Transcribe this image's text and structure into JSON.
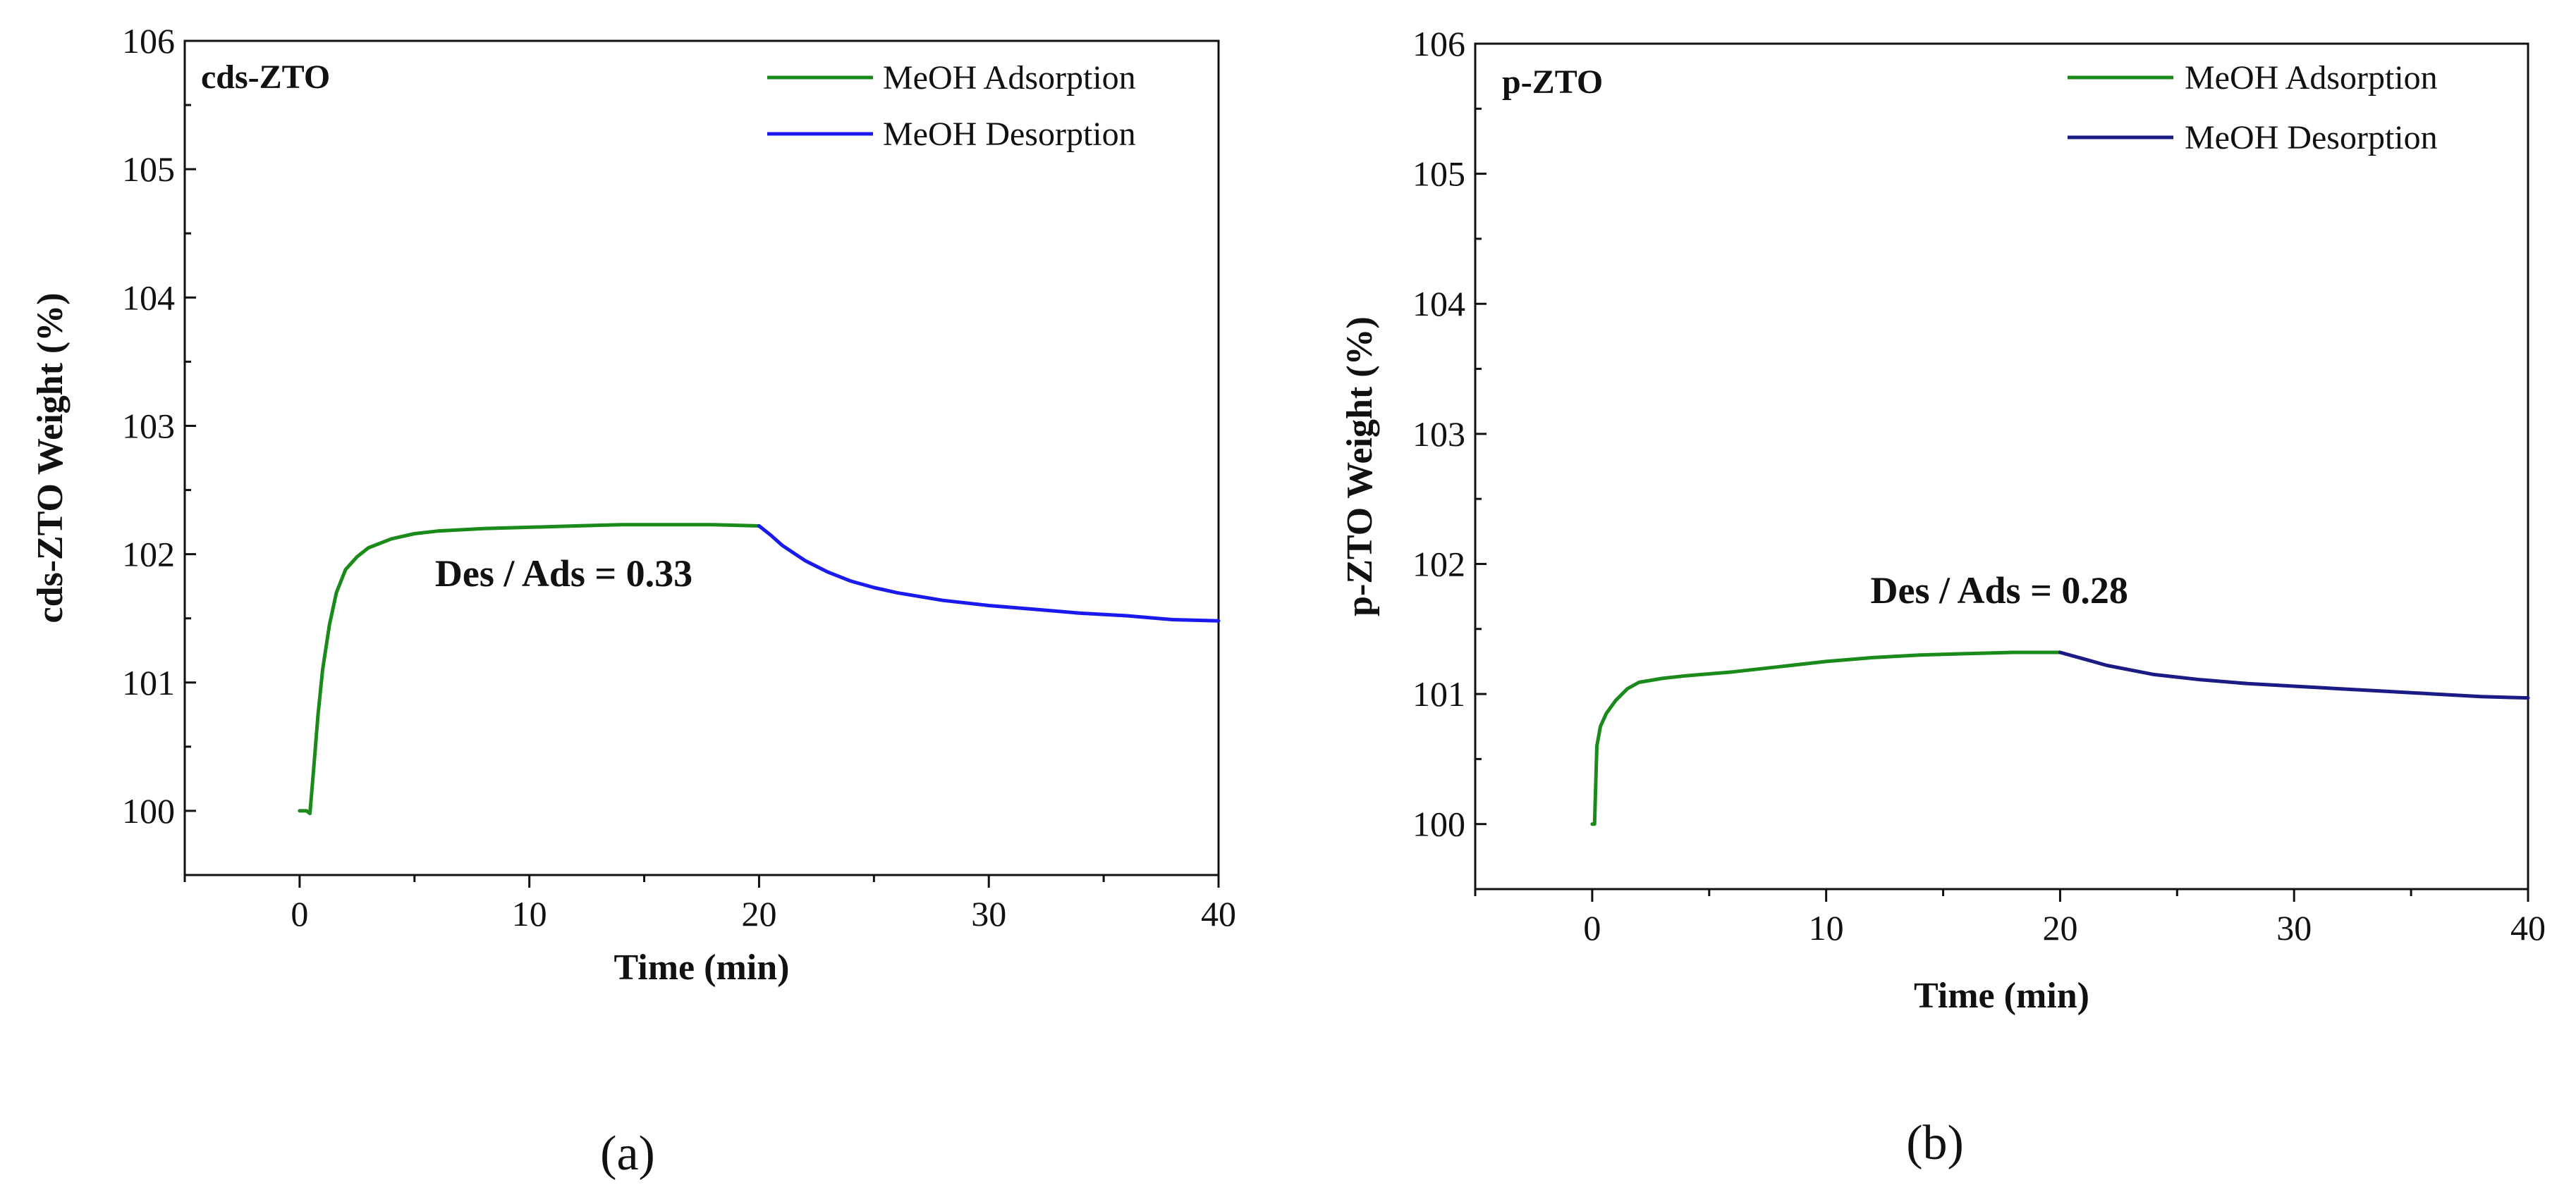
{
  "chart_data": [
    {
      "type": "line",
      "panel_id": "a",
      "caption": "(a)",
      "tag": "cds-ZTO",
      "xlabel": "Time (min)",
      "ylabel": "cds-ZTO Weight (%)",
      "xlim": [
        -5,
        40
      ],
      "ylim": [
        99.5,
        106
      ],
      "xticks": [
        0,
        10,
        20,
        30,
        40
      ],
      "xtick_labels": [
        "0",
        "10",
        "20",
        "30",
        "40"
      ],
      "yticks": [
        100,
        101,
        102,
        103,
        104,
        105,
        106
      ],
      "ytick_labels": [
        "100",
        "101",
        "102",
        "103",
        "104",
        "105",
        "106"
      ],
      "annotation": {
        "text": "Des / Ads = 0.33",
        "x": 11.5,
        "y": 101.75
      },
      "legend_position": "top-right",
      "series": [
        {
          "name": "MeOH Adsorption",
          "color": "#1a8a1a",
          "x": [
            0,
            0.3,
            0.45,
            0.6,
            0.8,
            1.0,
            1.3,
            1.6,
            2.0,
            2.5,
            3.0,
            4.0,
            5.0,
            6.0,
            8.0,
            10.0,
            12.0,
            14.0,
            16.0,
            18.0,
            20.0
          ],
          "y": [
            100.0,
            100.0,
            99.98,
            100.3,
            100.75,
            101.1,
            101.45,
            101.7,
            101.88,
            101.98,
            102.05,
            102.12,
            102.16,
            102.18,
            102.2,
            102.21,
            102.22,
            102.23,
            102.23,
            102.23,
            102.22
          ]
        },
        {
          "name": "MeOH Desorption",
          "color": "#1a1aee",
          "x": [
            20.0,
            20.5,
            21.0,
            22.0,
            23.0,
            24.0,
            25.0,
            26.0,
            28.0,
            30.0,
            32.0,
            34.0,
            36.0,
            38.0,
            40.0
          ],
          "y": [
            102.22,
            102.15,
            102.07,
            101.95,
            101.86,
            101.79,
            101.74,
            101.7,
            101.64,
            101.6,
            101.57,
            101.54,
            101.52,
            101.49,
            101.48
          ]
        }
      ]
    },
    {
      "type": "line",
      "panel_id": "b",
      "caption": "(b)",
      "tag": "p-ZTO",
      "xlabel": "Time (min)",
      "ylabel": "p-ZTO Weight (%)",
      "xlim": [
        -5,
        40
      ],
      "ylim": [
        99.5,
        106
      ],
      "xticks": [
        0,
        10,
        20,
        30,
        40
      ],
      "xtick_labels": [
        "0",
        "10",
        "20",
        "30",
        "40"
      ],
      "yticks": [
        100,
        101,
        102,
        103,
        104,
        105,
        106
      ],
      "ytick_labels": [
        "100",
        "101",
        "102",
        "103",
        "104",
        "105",
        "106"
      ],
      "annotation": {
        "text": "Des / Ads = 0.28",
        "x": 17.4,
        "y": 101.7
      },
      "legend_position": "top-right",
      "series": [
        {
          "name": "MeOH Adsorption",
          "color": "#1a8a1a",
          "x": [
            0,
            0.1,
            0.2,
            0.35,
            0.6,
            1.0,
            1.5,
            2.0,
            3.0,
            4.0,
            6.0,
            8.0,
            10.0,
            12.0,
            14.0,
            16.0,
            18.0,
            20.0
          ],
          "y": [
            100.0,
            100.0,
            100.6,
            100.75,
            100.85,
            100.95,
            101.04,
            101.09,
            101.12,
            101.14,
            101.17,
            101.21,
            101.25,
            101.28,
            101.3,
            101.31,
            101.32,
            101.32
          ]
        },
        {
          "name": "MeOH Desorption",
          "color": "#1b1b85",
          "x": [
            20.0,
            21.0,
            22.0,
            24.0,
            26.0,
            28.0,
            30.0,
            32.0,
            34.0,
            36.0,
            38.0,
            40.0
          ],
          "y": [
            101.32,
            101.27,
            101.22,
            101.15,
            101.11,
            101.08,
            101.06,
            101.04,
            101.02,
            101.0,
            100.98,
            100.97
          ]
        }
      ]
    }
  ]
}
